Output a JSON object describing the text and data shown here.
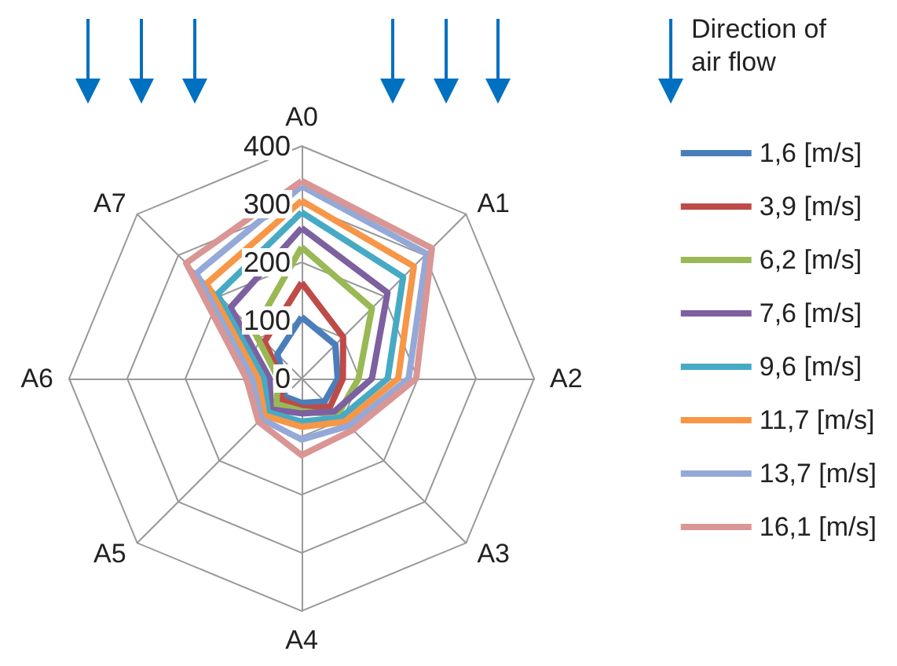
{
  "chart_data": {
    "type": "radar",
    "categories": [
      "A0",
      "A1",
      "A2",
      "A3",
      "A4",
      "A5",
      "A6",
      "A7"
    ],
    "ylim": [
      0,
      400
    ],
    "yticks": [
      0,
      100,
      200,
      300,
      400
    ],
    "grid": true,
    "legend": "right",
    "marker": "none",
    "line_style": "solid",
    "annotations": [
      "Direction of air flow"
    ],
    "series": [
      {
        "name": "1,6 [m/s]",
        "color": "#4a7ebb",
        "values": [
          106,
          82,
          62,
          56,
          42,
          43,
          30,
          59
        ]
      },
      {
        "name": "3,9 [m/s]",
        "color": "#be4b48",
        "values": [
          165,
          101,
          71,
          69,
          51,
          50,
          35,
          90
        ]
      },
      {
        "name": "6,2 [m/s]",
        "color": "#98b954",
        "values": [
          226,
          171,
          98,
          88,
          56,
          62,
          40,
          116
        ]
      },
      {
        "name": "7,6 [m/s]",
        "color": "#7d60a0",
        "values": [
          259,
          209,
          121,
          80,
          60,
          75,
          55,
          173
        ]
      },
      {
        "name": "9,6 [m/s]",
        "color": "#46aac5",
        "values": [
          286,
          247,
          148,
          95,
          74,
          82,
          65,
          205
        ]
      },
      {
        "name": "11,7 [m/s]",
        "color": "#f79646",
        "values": [
          306,
          273,
          166,
          105,
          83,
          90,
          75,
          231
        ]
      },
      {
        "name": "13,7 [m/s]",
        "color": "#94a9d7",
        "values": [
          331,
          304,
          184,
          115,
          105,
          98,
          85,
          256
        ]
      },
      {
        "name": "16,1 [m/s]",
        "color": "#d99694",
        "values": [
          340,
          317,
          197,
          125,
          132,
          105,
          95,
          281
        ]
      }
    ]
  }
}
